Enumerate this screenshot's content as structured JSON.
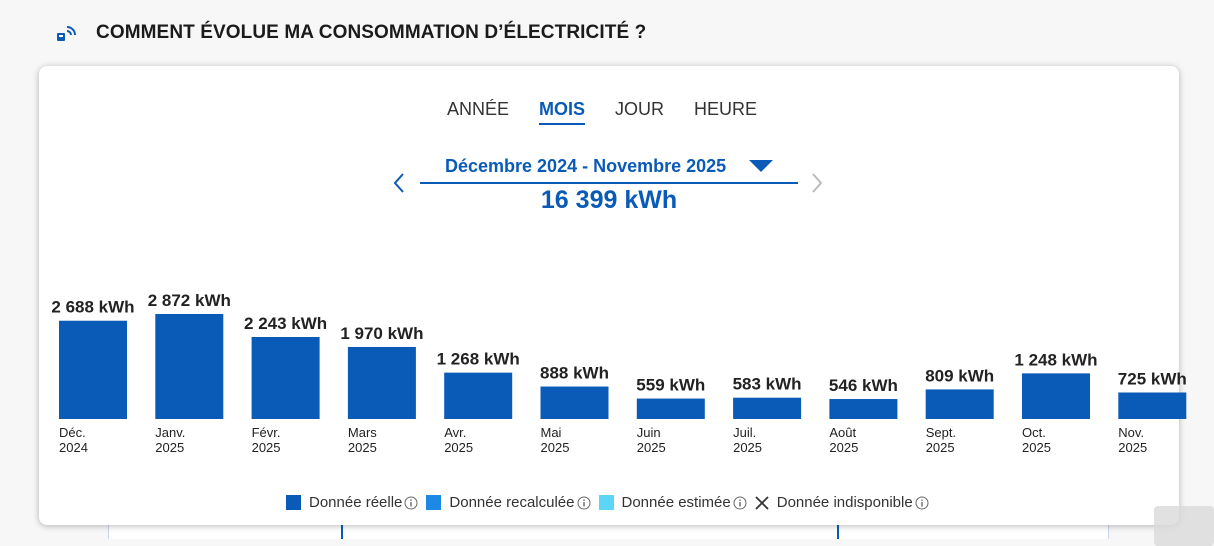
{
  "header": {
    "title": "COMMENT ÉVOLUE MA CONSOMMATION D’ÉLECTRICITÉ ?",
    "icon": "smart-meter-icon"
  },
  "tabs": [
    {
      "label": "ANNÉE",
      "active": false
    },
    {
      "label": "MOIS",
      "active": true
    },
    {
      "label": "JOUR",
      "active": false
    },
    {
      "label": "HEURE",
      "active": false
    }
  ],
  "period": {
    "label": "Décembre 2024 - Novembre 2025"
  },
  "total": "16 399 kWh",
  "legend": [
    {
      "label": "Donnée réelle",
      "color": "#0a5ab8"
    },
    {
      "label": "Donnée recalculée",
      "color": "#1e88e5"
    },
    {
      "label": "Donnée estimée",
      "color": "#5cd6f5"
    },
    {
      "label": "Donnée indisponible",
      "color": "#333333"
    }
  ],
  "chart_data": {
    "type": "bar",
    "categories": [
      [
        "Déc.",
        "2024"
      ],
      [
        "Janv.",
        "2025"
      ],
      [
        "Févr.",
        "2025"
      ],
      [
        "Mars",
        "2025"
      ],
      [
        "Avr.",
        "2025"
      ],
      [
        "Mai",
        "2025"
      ],
      [
        "Juin",
        "2025"
      ],
      [
        "Juil.",
        "2025"
      ],
      [
        "Août",
        "2025"
      ],
      [
        "Sept.",
        "2025"
      ],
      [
        "Oct.",
        "2025"
      ],
      [
        "Nov.",
        "2025"
      ]
    ],
    "values": [
      2688,
      2872,
      2243,
      1970,
      1268,
      888,
      559,
      583,
      546,
      809,
      1248,
      725
    ],
    "value_labels": [
      "2 688 kWh",
      "2 872 kWh",
      "2 243 kWh",
      "1 970 kWh",
      "1 268 kWh",
      "888 kWh",
      "559 kWh",
      "583 kWh",
      "546 kWh",
      "809 kWh",
      "1 248 kWh",
      "725 kWh"
    ],
    "unit": "kWh",
    "color": "#0a5ab8"
  }
}
